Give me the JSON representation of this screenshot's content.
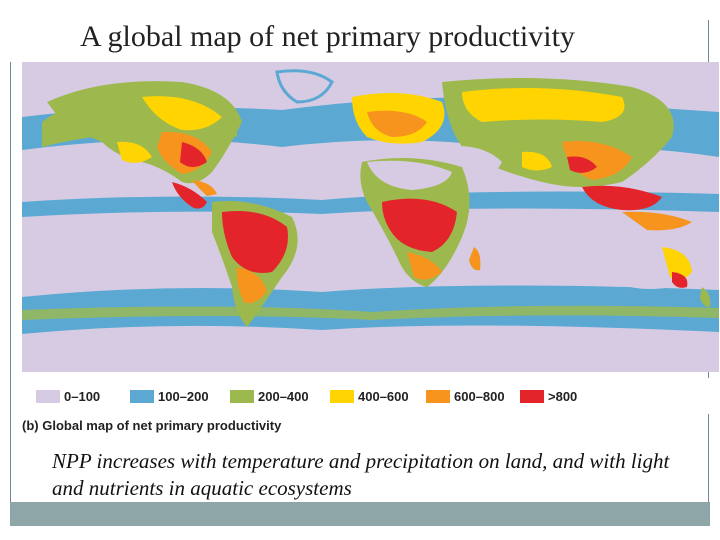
{
  "title": "A global map of net primary productivity",
  "legend": [
    {
      "label": "0–100",
      "color": "#d6cbe3"
    },
    {
      "label": "100–200",
      "color": "#5ba9d3"
    },
    {
      "label": "200–400",
      "color": "#9db94d"
    },
    {
      "label": "400–600",
      "color": "#ffd400"
    },
    {
      "label": "600–800",
      "color": "#f7941d"
    },
    {
      "label": ">800",
      "color": "#e3242b"
    }
  ],
  "caption": {
    "prefix": "(b)",
    "text": "Global map of net primary productivity"
  },
  "note": "NPP increases with temperature and precipitation on land, and with light and nutrients in aquatic ecosystems"
}
